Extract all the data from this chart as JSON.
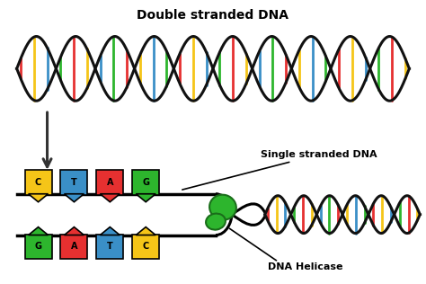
{
  "title_top": "Double stranded DNA",
  "label_single": "Single stranded DNA",
  "label_helicase": "DNA Helicase",
  "bg_color": "#ffffff",
  "strand_colors": [
    "#e63030",
    "#f5c518",
    "#3a8fc7",
    "#2db52d"
  ],
  "helix_color": "#111111",
  "arrow_color": "#333333",
  "bases_top": [
    "C",
    "T",
    "A",
    "G"
  ],
  "bases_bottom": [
    "G",
    "A",
    "T",
    "C"
  ],
  "base_colors_top": [
    "#f5c518",
    "#3a8fc7",
    "#e63030",
    "#2db52d"
  ],
  "base_colors_bottom": [
    "#2db52d",
    "#e63030",
    "#3a8fc7",
    "#f5c518"
  ],
  "helicase_color": "#2db52d",
  "helicase_edge": "#1a6e1a"
}
